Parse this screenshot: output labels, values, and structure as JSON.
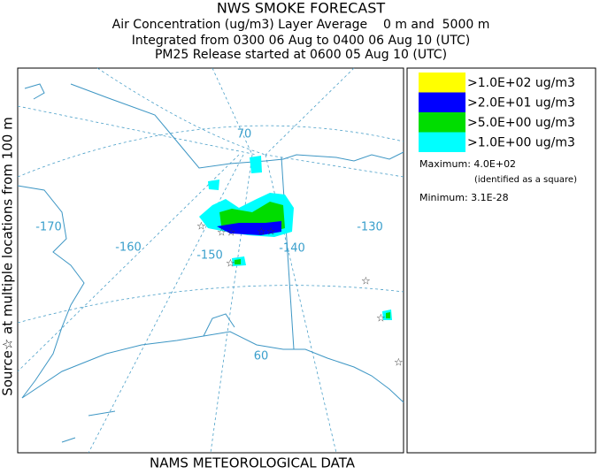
{
  "header": {
    "lines": [
      "NWS SMOKE FORECAST",
      "Air Concentration (ug/m3) Layer Average    0 m and  5000 m",
      "Integrated from 0300 06 Aug to 0400 06 Aug 10 (UTC)",
      "PM25 Release started at 0600 05 Aug 10 (UTC)"
    ]
  },
  "side_label": "Source☆ at multiple locations  from   100 m",
  "footer": "NAMS METEOROLOGICAL DATA",
  "legend": {
    "entries": [
      {
        "label": ">1.0E+02 ug/m3",
        "color": "#ffff00"
      },
      {
        "label": ">2.0E+01 ug/m3",
        "color": "#0000ff"
      },
      {
        "label": ">5.0E+00 ug/m3",
        "color": "#00dd00"
      },
      {
        "label": ">1.0E+00 ug/m3",
        "color": "#00ffff"
      }
    ],
    "maximum": "Maximum: 4.0E+02",
    "maximum_note": "(identified as a square)",
    "minimum": "Minimum: 3.1E-28"
  },
  "map": {
    "labels": [
      "-170",
      "-160",
      "-150",
      "-140",
      "-130",
      "70",
      "60"
    ]
  }
}
